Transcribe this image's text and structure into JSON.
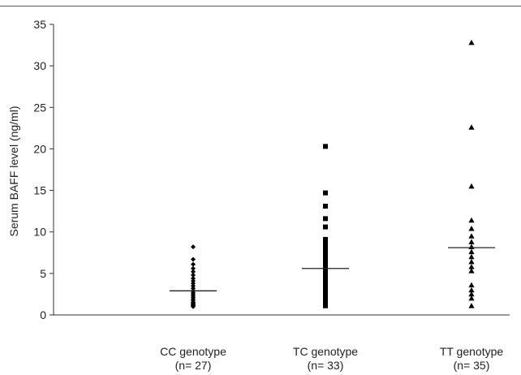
{
  "chart_data": {
    "type": "scatter",
    "title": "",
    "xlabel": "",
    "ylabel": "Serum BAFF level (ng/ml)",
    "ylim": [
      0,
      35
    ],
    "yticks": [
      0,
      5,
      10,
      15,
      20,
      25,
      30,
      35
    ],
    "grid": false,
    "legend": "none",
    "categories": [
      {
        "line1": "CC genotype",
        "line2": "(n= 27)"
      },
      {
        "line1": "TC genotype",
        "line2": "(n= 33)"
      },
      {
        "line1": "TT genotype",
        "line2": "(n= 35)"
      }
    ],
    "series": [
      {
        "marker": "diamond",
        "color": "#000000",
        "median": 2.9,
        "values": [
          8.2,
          6.7,
          6.1,
          5.6,
          5.2,
          4.8,
          4.4,
          4.1,
          3.8,
          3.5,
          3.2,
          2.9,
          2.7,
          2.5,
          2.3,
          2.1,
          1.9,
          1.7,
          1.5,
          1.4,
          1.3,
          1.2,
          1.1,
          1.0
        ]
      },
      {
        "marker": "square",
        "color": "#000000",
        "median": 5.6,
        "values": [
          20.3,
          14.7,
          13.1,
          11.6,
          10.6,
          9.1,
          8.6,
          8.1,
          7.6,
          7.1,
          6.6,
          6.1,
          5.8,
          5.4,
          5.0,
          4.6,
          4.2,
          3.8,
          3.4,
          3.0,
          2.6,
          2.2,
          1.8,
          1.5,
          1.3,
          1.1
        ]
      },
      {
        "marker": "triangle",
        "color": "#000000",
        "median": 8.1,
        "values": [
          32.8,
          22.6,
          15.5,
          11.4,
          10.4,
          9.5,
          8.8,
          8.2,
          7.6,
          7.0,
          6.4,
          5.8,
          5.3,
          3.6,
          3.0,
          2.5,
          2.0,
          1.1
        ]
      }
    ]
  }
}
